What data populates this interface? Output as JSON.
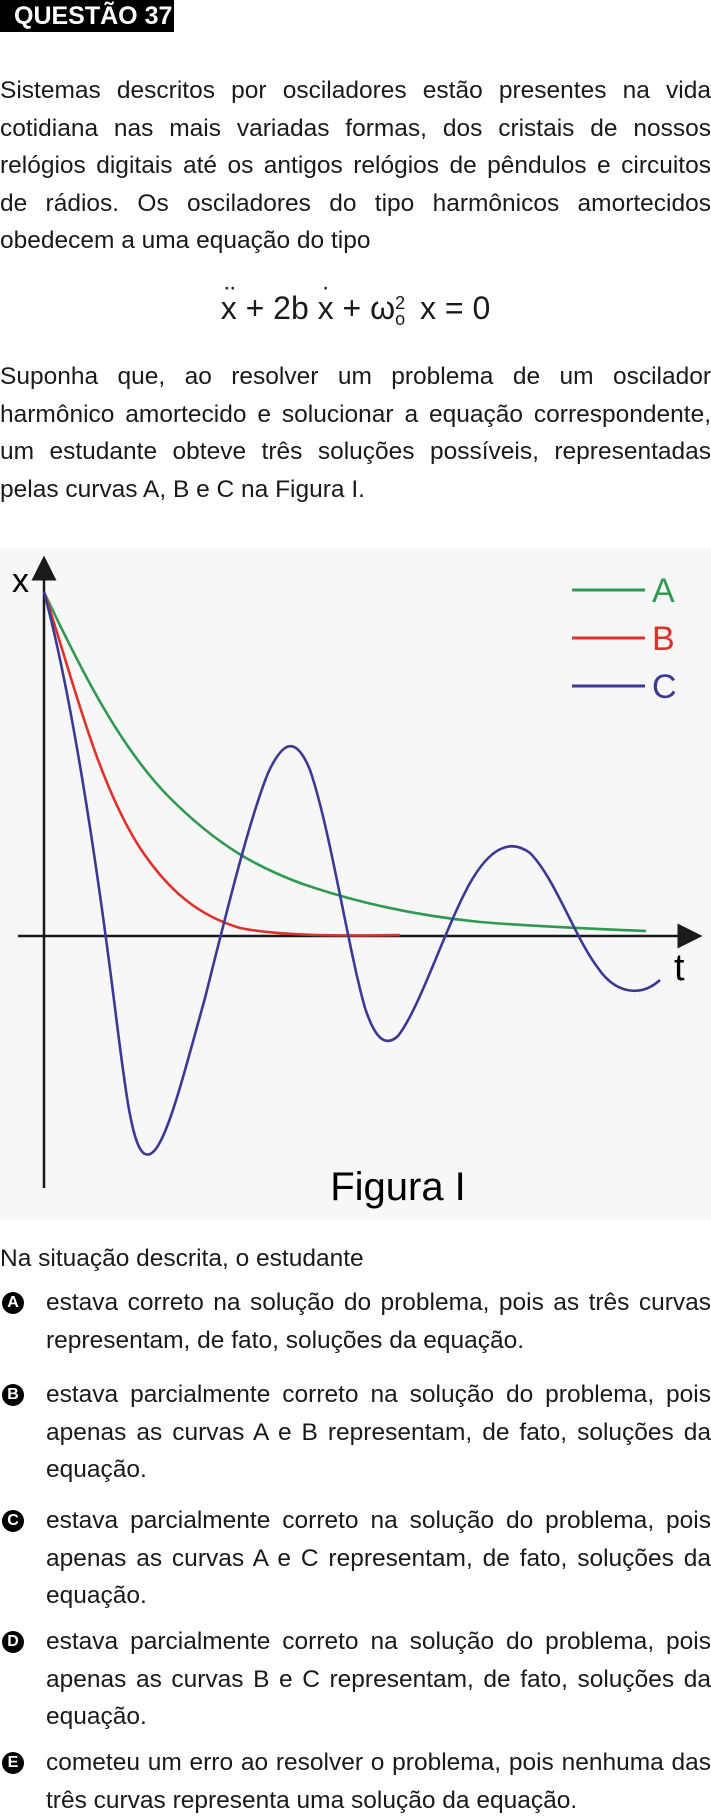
{
  "question_label": "QUESTÃO 37",
  "intro": "Sistemas descritos por osciladores estão presentes na vida cotidiana nas mais variadas formas, dos cristais de nossos relógios digitais até os antigos relógios de pêndulos e circuitos de rádios. Os osciladores do tipo harmônicos amortecidos obedecem a uma equação do tipo",
  "equation": {
    "x_ddot": "x",
    "plus1": "+ 2b",
    "x_dot": "x",
    "plus2": "+ ω",
    "omega_sub": "o",
    "omega_sup": "2",
    "tail": "x = 0"
  },
  "problem": "Suponha que, ao resolver um problema de um oscilador harmônico amortecido e solucionar a equação correspondente, um estudante obteve três soluções possíveis, representadas pelas curvas A, B e C na Figura I.",
  "figure": {
    "caption": "Figura I",
    "y_axis_label": "x",
    "x_axis_label": "t",
    "legend": [
      {
        "name": "A",
        "color": "#2e9a4f"
      },
      {
        "name": "B",
        "color": "#e0302a"
      },
      {
        "name": "C",
        "color": "#3a3a96"
      }
    ]
  },
  "lead": "Na situação descrita, o estudante",
  "options": [
    {
      "letter": "A",
      "text": "estava correto na solução do problema, pois as três curvas representam, de fato, soluções da equação."
    },
    {
      "letter": "B",
      "text": "estava parcialmente correto na solução do problema, pois apenas as curvas A e B representam, de fato, soluções da equação."
    },
    {
      "letter": "C",
      "text": "estava parcialmente correto na solução do problema, pois apenas as curvas A e C representam, de fato, soluções da equação."
    },
    {
      "letter": "D",
      "text": "estava parcialmente correto na solução do problema, pois apenas as curvas B e C representam, de fato, soluções da equação."
    },
    {
      "letter": "E",
      "text": "cometeu um erro ao resolver o problema, pois nenhuma das três curvas representa uma solução da equação."
    }
  ]
}
